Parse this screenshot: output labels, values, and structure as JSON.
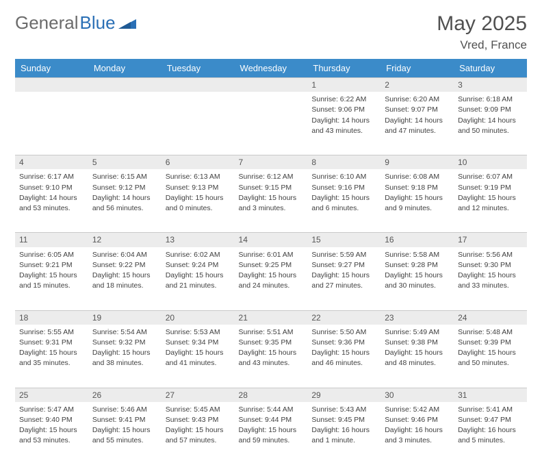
{
  "brand": {
    "part1": "General",
    "part2": "Blue"
  },
  "title": "May 2025",
  "location": "Vred, France",
  "colors": {
    "header_bg": "#3b8bc9",
    "header_fg": "#ffffff",
    "daynum_bg": "#ececec",
    "daynum_border": "#c9c9c9",
    "text": "#404040",
    "brand_gray": "#6b6b6b",
    "brand_blue": "#2a6fb5"
  },
  "weekdays": [
    "Sunday",
    "Monday",
    "Tuesday",
    "Wednesday",
    "Thursday",
    "Friday",
    "Saturday"
  ],
  "weeks": [
    [
      null,
      null,
      null,
      null,
      {
        "n": "1",
        "sr": "Sunrise: 6:22 AM",
        "ss": "Sunset: 9:06 PM",
        "d1": "Daylight: 14 hours",
        "d2": "and 43 minutes."
      },
      {
        "n": "2",
        "sr": "Sunrise: 6:20 AM",
        "ss": "Sunset: 9:07 PM",
        "d1": "Daylight: 14 hours",
        "d2": "and 47 minutes."
      },
      {
        "n": "3",
        "sr": "Sunrise: 6:18 AM",
        "ss": "Sunset: 9:09 PM",
        "d1": "Daylight: 14 hours",
        "d2": "and 50 minutes."
      }
    ],
    [
      {
        "n": "4",
        "sr": "Sunrise: 6:17 AM",
        "ss": "Sunset: 9:10 PM",
        "d1": "Daylight: 14 hours",
        "d2": "and 53 minutes."
      },
      {
        "n": "5",
        "sr": "Sunrise: 6:15 AM",
        "ss": "Sunset: 9:12 PM",
        "d1": "Daylight: 14 hours",
        "d2": "and 56 minutes."
      },
      {
        "n": "6",
        "sr": "Sunrise: 6:13 AM",
        "ss": "Sunset: 9:13 PM",
        "d1": "Daylight: 15 hours",
        "d2": "and 0 minutes."
      },
      {
        "n": "7",
        "sr": "Sunrise: 6:12 AM",
        "ss": "Sunset: 9:15 PM",
        "d1": "Daylight: 15 hours",
        "d2": "and 3 minutes."
      },
      {
        "n": "8",
        "sr": "Sunrise: 6:10 AM",
        "ss": "Sunset: 9:16 PM",
        "d1": "Daylight: 15 hours",
        "d2": "and 6 minutes."
      },
      {
        "n": "9",
        "sr": "Sunrise: 6:08 AM",
        "ss": "Sunset: 9:18 PM",
        "d1": "Daylight: 15 hours",
        "d2": "and 9 minutes."
      },
      {
        "n": "10",
        "sr": "Sunrise: 6:07 AM",
        "ss": "Sunset: 9:19 PM",
        "d1": "Daylight: 15 hours",
        "d2": "and 12 minutes."
      }
    ],
    [
      {
        "n": "11",
        "sr": "Sunrise: 6:05 AM",
        "ss": "Sunset: 9:21 PM",
        "d1": "Daylight: 15 hours",
        "d2": "and 15 minutes."
      },
      {
        "n": "12",
        "sr": "Sunrise: 6:04 AM",
        "ss": "Sunset: 9:22 PM",
        "d1": "Daylight: 15 hours",
        "d2": "and 18 minutes."
      },
      {
        "n": "13",
        "sr": "Sunrise: 6:02 AM",
        "ss": "Sunset: 9:24 PM",
        "d1": "Daylight: 15 hours",
        "d2": "and 21 minutes."
      },
      {
        "n": "14",
        "sr": "Sunrise: 6:01 AM",
        "ss": "Sunset: 9:25 PM",
        "d1": "Daylight: 15 hours",
        "d2": "and 24 minutes."
      },
      {
        "n": "15",
        "sr": "Sunrise: 5:59 AM",
        "ss": "Sunset: 9:27 PM",
        "d1": "Daylight: 15 hours",
        "d2": "and 27 minutes."
      },
      {
        "n": "16",
        "sr": "Sunrise: 5:58 AM",
        "ss": "Sunset: 9:28 PM",
        "d1": "Daylight: 15 hours",
        "d2": "and 30 minutes."
      },
      {
        "n": "17",
        "sr": "Sunrise: 5:56 AM",
        "ss": "Sunset: 9:30 PM",
        "d1": "Daylight: 15 hours",
        "d2": "and 33 minutes."
      }
    ],
    [
      {
        "n": "18",
        "sr": "Sunrise: 5:55 AM",
        "ss": "Sunset: 9:31 PM",
        "d1": "Daylight: 15 hours",
        "d2": "and 35 minutes."
      },
      {
        "n": "19",
        "sr": "Sunrise: 5:54 AM",
        "ss": "Sunset: 9:32 PM",
        "d1": "Daylight: 15 hours",
        "d2": "and 38 minutes."
      },
      {
        "n": "20",
        "sr": "Sunrise: 5:53 AM",
        "ss": "Sunset: 9:34 PM",
        "d1": "Daylight: 15 hours",
        "d2": "and 41 minutes."
      },
      {
        "n": "21",
        "sr": "Sunrise: 5:51 AM",
        "ss": "Sunset: 9:35 PM",
        "d1": "Daylight: 15 hours",
        "d2": "and 43 minutes."
      },
      {
        "n": "22",
        "sr": "Sunrise: 5:50 AM",
        "ss": "Sunset: 9:36 PM",
        "d1": "Daylight: 15 hours",
        "d2": "and 46 minutes."
      },
      {
        "n": "23",
        "sr": "Sunrise: 5:49 AM",
        "ss": "Sunset: 9:38 PM",
        "d1": "Daylight: 15 hours",
        "d2": "and 48 minutes."
      },
      {
        "n": "24",
        "sr": "Sunrise: 5:48 AM",
        "ss": "Sunset: 9:39 PM",
        "d1": "Daylight: 15 hours",
        "d2": "and 50 minutes."
      }
    ],
    [
      {
        "n": "25",
        "sr": "Sunrise: 5:47 AM",
        "ss": "Sunset: 9:40 PM",
        "d1": "Daylight: 15 hours",
        "d2": "and 53 minutes."
      },
      {
        "n": "26",
        "sr": "Sunrise: 5:46 AM",
        "ss": "Sunset: 9:41 PM",
        "d1": "Daylight: 15 hours",
        "d2": "and 55 minutes."
      },
      {
        "n": "27",
        "sr": "Sunrise: 5:45 AM",
        "ss": "Sunset: 9:43 PM",
        "d1": "Daylight: 15 hours",
        "d2": "and 57 minutes."
      },
      {
        "n": "28",
        "sr": "Sunrise: 5:44 AM",
        "ss": "Sunset: 9:44 PM",
        "d1": "Daylight: 15 hours",
        "d2": "and 59 minutes."
      },
      {
        "n": "29",
        "sr": "Sunrise: 5:43 AM",
        "ss": "Sunset: 9:45 PM",
        "d1": "Daylight: 16 hours",
        "d2": "and 1 minute."
      },
      {
        "n": "30",
        "sr": "Sunrise: 5:42 AM",
        "ss": "Sunset: 9:46 PM",
        "d1": "Daylight: 16 hours",
        "d2": "and 3 minutes."
      },
      {
        "n": "31",
        "sr": "Sunrise: 5:41 AM",
        "ss": "Sunset: 9:47 PM",
        "d1": "Daylight: 16 hours",
        "d2": "and 5 minutes."
      }
    ]
  ]
}
